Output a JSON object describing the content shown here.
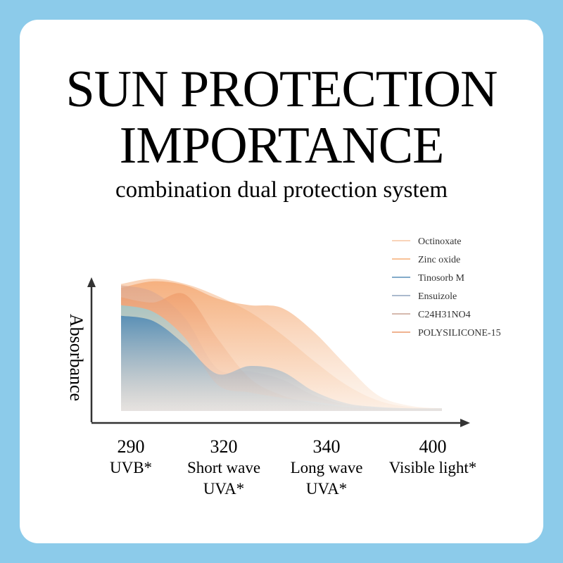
{
  "header": {
    "title_line1": "SUN PROTECTION",
    "title_line2": "IMPORTANCE",
    "subtitle": "combination dual protection system"
  },
  "chart_data": {
    "type": "area",
    "ylabel": "Absorbance",
    "xlabel": "",
    "ticks": [
      {
        "value": "290",
        "lines": [
          "UVB*"
        ]
      },
      {
        "value": "320",
        "lines": [
          "Short wave",
          "UVA*"
        ]
      },
      {
        "value": "340",
        "lines": [
          "Long wave",
          "UVA*"
        ]
      },
      {
        "value": "400",
        "lines": [
          "Visible light*"
        ]
      }
    ],
    "legend_placement": "top-right",
    "x": [
      0,
      0.1,
      0.2,
      0.3,
      0.4,
      0.5,
      0.6,
      0.7,
      0.8,
      0.9,
      1.0
    ],
    "series": [
      {
        "name": "Octinoxate",
        "color": "#f7c6a2",
        "values": [
          0.96,
          1.0,
          0.96,
          0.87,
          0.75,
          0.58,
          0.38,
          0.2,
          0.08,
          0.03,
          0.02
        ]
      },
      {
        "name": "Zinc oxide",
        "color": "#f5ad76",
        "values": [
          0.93,
          0.98,
          0.95,
          0.85,
          0.8,
          0.78,
          0.6,
          0.35,
          0.12,
          0.04,
          0.02
        ]
      },
      {
        "name": "Tinosorb M",
        "color": "#5a8fb8",
        "values": [
          0.72,
          0.68,
          0.5,
          0.28,
          0.34,
          0.3,
          0.15,
          0.06,
          0.03,
          0.02,
          0.02
        ]
      },
      {
        "name": "Ensuizole",
        "color": "#8fa3bd",
        "values": [
          0.8,
          0.75,
          0.55,
          0.2,
          0.14,
          0.1,
          0.07,
          0.04,
          0.03,
          0.02,
          0.02
        ]
      },
      {
        "name": "C24H31NO4",
        "color": "#c9a393",
        "values": [
          0.95,
          0.9,
          0.7,
          0.32,
          0.3,
          0.24,
          0.12,
          0.05,
          0.03,
          0.02,
          0.02
        ]
      },
      {
        "name": "POLYSILICONE-15",
        "color": "#eb9a6b",
        "values": [
          0.86,
          0.82,
          0.88,
          0.55,
          0.25,
          0.12,
          0.06,
          0.03,
          0.02,
          0.02,
          0.02
        ]
      }
    ],
    "grid": false
  }
}
